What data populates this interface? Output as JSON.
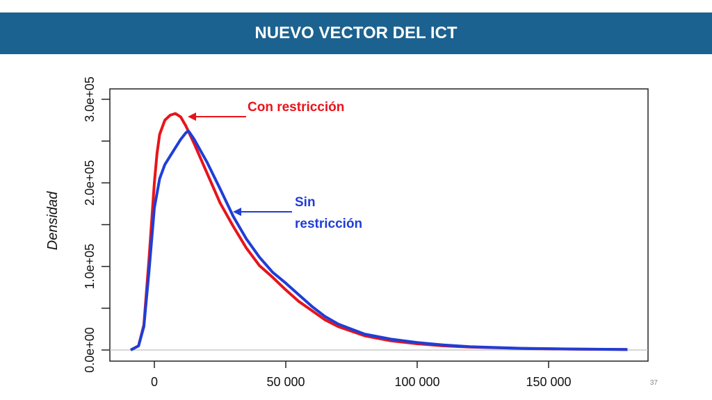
{
  "slide": {
    "title": "NUEVO VECTOR DEL ICT",
    "page_number": "37"
  },
  "colors": {
    "title_bar": "#1c6290",
    "con": "#e8141b",
    "sin": "#1f3ed6"
  },
  "chart_data": {
    "type": "line",
    "title": "",
    "xlabel": "",
    "ylabel": "Densidad",
    "xlim": [
      -10000,
      180000
    ],
    "ylim": [
      0,
      300000
    ],
    "x_ticks": [
      {
        "value": 0,
        "label": "0"
      },
      {
        "value": 50000,
        "label": "50 000"
      },
      {
        "value": 100000,
        "label": "100 000"
      },
      {
        "value": 150000,
        "label": "150 000"
      }
    ],
    "y_ticks": [
      {
        "value": 0,
        "label": "0.0e+00"
      },
      {
        "value": 50000,
        "label": ""
      },
      {
        "value": 100000,
        "label": "1.0e+05"
      },
      {
        "value": 150000,
        "label": ""
      },
      {
        "value": 200000,
        "label": "2.0e+05"
      },
      {
        "value": 250000,
        "label": ""
      },
      {
        "value": 300000,
        "label": "3.0e+05"
      }
    ],
    "grid": false,
    "series": [
      {
        "name": "Con restricción",
        "color": "#e8141b",
        "x": [
          -9000,
          -6000,
          -4000,
          -2000,
          0,
          1000,
          2000,
          4000,
          6000,
          8000,
          10000,
          12000,
          15000,
          20000,
          25000,
          30000,
          35000,
          40000,
          45000,
          50000,
          55000,
          60000,
          65000,
          70000,
          80000,
          90000,
          100000,
          110000,
          120000,
          140000,
          160000,
          180000
        ],
        "y": [
          0,
          5000,
          30000,
          110000,
          200000,
          235000,
          258000,
          275000,
          281000,
          283000,
          279000,
          268000,
          248000,
          212000,
          176000,
          148000,
          122000,
          101000,
          87000,
          72000,
          58000,
          47000,
          36000,
          28000,
          17000,
          11000,
          7500,
          5000,
          3500,
          1800,
          1000,
          500
        ]
      },
      {
        "name": "Sin restricción",
        "color": "#1f3ed6",
        "x": [
          -9000,
          -6000,
          -4000,
          -2000,
          0,
          2000,
          4000,
          6000,
          8000,
          10000,
          12000,
          13000,
          15000,
          20000,
          25000,
          30000,
          35000,
          40000,
          45000,
          50000,
          55000,
          60000,
          65000,
          70000,
          80000,
          90000,
          100000,
          110000,
          120000,
          140000,
          160000,
          180000
        ],
        "y": [
          0,
          5000,
          28000,
          95000,
          170000,
          205000,
          222000,
          232000,
          242000,
          252000,
          260000,
          262000,
          253000,
          225000,
          193000,
          160000,
          133000,
          111000,
          93000,
          80000,
          66000,
          52000,
          40000,
          31000,
          19000,
          13000,
          9000,
          6000,
          4000,
          2000,
          1200,
          600
        ]
      }
    ],
    "annotations": [
      {
        "text": "Con restricción",
        "color": "#e8141b",
        "points_to_x": 10000,
        "points_to_y": 278000
      },
      {
        "text": "Sin restricción",
        "lines": [
          "Sin",
          "restricción"
        ],
        "color": "#1f3ed6",
        "points_to_x": 30000,
        "points_to_y": 165000
      }
    ]
  }
}
